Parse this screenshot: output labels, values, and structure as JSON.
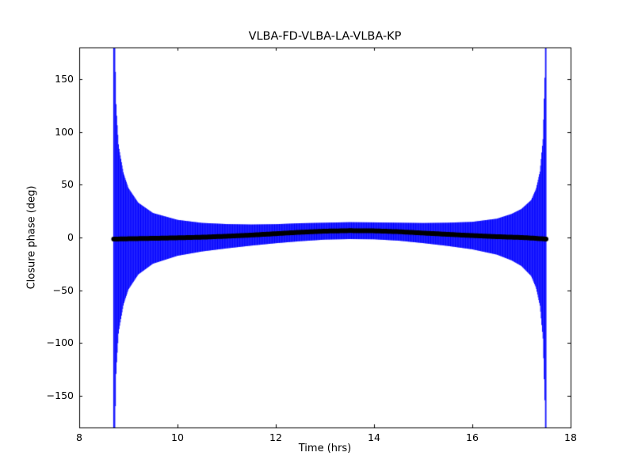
{
  "figure": {
    "background_color": "#ffffff",
    "axes_edge_color": "#000000"
  },
  "chart_data": {
    "type": "errorbar",
    "title": "VLBA-FD-VLBA-LA-VLBA-KP",
    "xlabel": "Time (hrs)",
    "ylabel": "Closure phase (deg)",
    "xlim": [
      8,
      18
    ],
    "ylim": [
      -180,
      180
    ],
    "xticks": [
      8,
      10,
      12,
      14,
      16,
      18
    ],
    "yticks": [
      -150,
      -100,
      -50,
      0,
      50,
      100,
      150
    ],
    "grid": false,
    "legend": "none",
    "errorbar_color": "#0000ff",
    "marker_color": "#000000",
    "time_range_hrs": [
      8.7,
      17.5
    ],
    "n_error_bars": 720,
    "closure_phase_curve_deg": [
      [
        8.7,
        -1.5
      ],
      [
        9.0,
        -1.2
      ],
      [
        9.5,
        -0.8
      ],
      [
        10.0,
        -0.3
      ],
      [
        10.5,
        0.3
      ],
      [
        11.0,
        1.2
      ],
      [
        11.5,
        2.3
      ],
      [
        12.0,
        3.6
      ],
      [
        12.5,
        5.0
      ],
      [
        13.0,
        6.0
      ],
      [
        13.5,
        6.5
      ],
      [
        14.0,
        6.3
      ],
      [
        14.5,
        5.5
      ],
      [
        15.0,
        4.2
      ],
      [
        15.5,
        3.0
      ],
      [
        16.0,
        1.8
      ],
      [
        16.5,
        0.8
      ],
      [
        17.0,
        0.0
      ],
      [
        17.3,
        -0.8
      ],
      [
        17.5,
        -1.5
      ]
    ],
    "error_halfwidth_deg": [
      [
        8.7,
        400
      ],
      [
        8.72,
        200
      ],
      [
        8.75,
        125
      ],
      [
        8.8,
        88
      ],
      [
        8.9,
        62
      ],
      [
        9.0,
        48
      ],
      [
        9.2,
        34
      ],
      [
        9.5,
        24
      ],
      [
        10.0,
        17
      ],
      [
        10.5,
        13.5
      ],
      [
        11.0,
        11.5
      ],
      [
        11.5,
        10
      ],
      [
        12.0,
        9
      ],
      [
        13.0,
        8
      ],
      [
        14.0,
        8
      ],
      [
        14.5,
        8.5
      ],
      [
        15.0,
        9.5
      ],
      [
        15.5,
        11
      ],
      [
        16.0,
        13
      ],
      [
        16.5,
        17
      ],
      [
        16.8,
        22
      ],
      [
        17.0,
        27
      ],
      [
        17.2,
        36
      ],
      [
        17.3,
        47
      ],
      [
        17.38,
        64
      ],
      [
        17.44,
        95
      ],
      [
        17.48,
        160
      ],
      [
        17.5,
        400
      ]
    ]
  }
}
